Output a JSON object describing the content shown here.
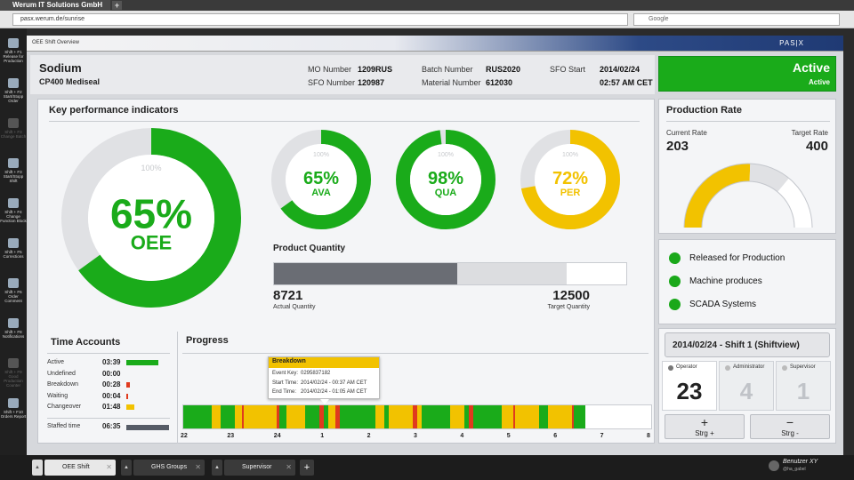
{
  "browser": {
    "tab_title": "Werum IT Solutions GmbH",
    "new_tab_label": "+",
    "url": "pasx.werum.de/sunrise",
    "search_placeholder": "Google"
  },
  "sidebar": {
    "items": [
      {
        "label": "Shift + F1 Release for Production",
        "icon": "release-icon",
        "enabled": true
      },
      {
        "label": "Shift + F2 Start/Stopp Order",
        "icon": "start-stop-icon",
        "enabled": true
      },
      {
        "label": "Shift + F3 Change Batch",
        "icon": "change-batch-icon",
        "enabled": false
      },
      {
        "label": "Shift + F3 Start/Stopp Shift",
        "icon": "shift-icon",
        "enabled": true
      },
      {
        "label": "Shift + F4 Change Function Block",
        "icon": "function-block-icon",
        "enabled": true
      },
      {
        "label": "Shift + F5 Corrections",
        "icon": "corrections-icon",
        "enabled": true
      },
      {
        "label": "Shift + F6 Order Comment",
        "icon": "comment-icon",
        "enabled": true
      },
      {
        "label": "Shift + F8 Notifications",
        "icon": "notifications-icon",
        "enabled": true
      },
      {
        "label": "Shift + F9 Good Production Counter",
        "icon": "counter-icon",
        "enabled": false
      },
      {
        "label": "Shift + F10 Orders Report",
        "icon": "report-icon",
        "enabled": true
      }
    ]
  },
  "app": {
    "window_title": "OEE Shift Overview",
    "logo": "PAS|X"
  },
  "order": {
    "product": "Sodium",
    "machine": "CP400 Mediseal",
    "mo_label": "MO Number",
    "mo_value": "1209RUS",
    "sfo_label": "SFO Number",
    "sfo_value": "120987",
    "batch_label": "Batch Number",
    "batch_value": "RUS2020",
    "material_label": "Material Number",
    "material_value": "612030",
    "sfo_start_label": "SFO Start",
    "sfo_start_date": "2014/02/24",
    "sfo_start_time": "02:57 AM CET"
  },
  "status": {
    "title": "Active",
    "subtitle": "Active",
    "color": "#1aab1a"
  },
  "kpi": {
    "title": "Key performance indicators",
    "oee": {
      "value": "65%",
      "label": "OEE",
      "max": "100%",
      "fraction": 0.65
    },
    "gauges": [
      {
        "value": "65%",
        "label": "AVA",
        "max": "100%",
        "fraction": 0.65,
        "color": "#1aab1a"
      },
      {
        "value": "98%",
        "label": "QUA",
        "max": "100%",
        "fraction": 0.98,
        "color": "#1aab1a"
      },
      {
        "value": "72%",
        "label": "PER",
        "max": "100%",
        "fraction": 0.72,
        "color": "#f2c200"
      }
    ],
    "product_quantity": {
      "title": "Product Quantity",
      "actual": "8721",
      "actual_label": "Actual Quantity",
      "target": "12500",
      "target_label": "Target Quantity",
      "actual_fraction": 0.52,
      "target_fraction": 0.83
    }
  },
  "production_rate": {
    "title": "Production Rate",
    "current_label": "Current Rate",
    "current": "203",
    "target_label": "Target Rate",
    "target": "400",
    "fraction": 0.51
  },
  "legend": [
    {
      "label": "Released for Production"
    },
    {
      "label": "Machine produces"
    },
    {
      "label": "SCADA Systems"
    }
  ],
  "time_accounts": {
    "title": "Time Accounts",
    "rows": [
      {
        "label": "Active",
        "value": "03:39",
        "color": "#1aab1a",
        "fraction": 1.0
      },
      {
        "label": "Undefined",
        "value": "00:00",
        "color": "#1aab1a",
        "fraction": 0.0
      },
      {
        "label": "Breakdown",
        "value": "00:28",
        "color": "#e03a1e",
        "fraction": 0.12
      },
      {
        "label": "Waiting",
        "value": "00:04",
        "color": "#e03a1e",
        "fraction": 0.03
      },
      {
        "label": "Changeover",
        "value": "01:48",
        "color": "#f2c200",
        "fraction": 0.25
      }
    ],
    "staffed_label": "Staffed time",
    "staffed_value": "06:35",
    "staffed_color": "#555b66"
  },
  "progress": {
    "title": "Progress",
    "tooltip": {
      "title": "Breakdown",
      "event_key_label": "Event Key:",
      "event_key": "0295837182",
      "start_label": "Start Time:",
      "start": "2014/02/24 - 00:37 AM CET",
      "end_label": "End Time:",
      "end": "2014/02/24 - 01:05 AM CET"
    },
    "hours": [
      "22",
      "23",
      "24",
      "1",
      "2",
      "3",
      "4",
      "5",
      "6",
      "7",
      "8"
    ],
    "elapsed_fraction": 0.86,
    "segments": [
      {
        "start": 0.0,
        "end": 0.06,
        "color": "#1aab1a"
      },
      {
        "start": 0.06,
        "end": 0.08,
        "color": "#f2c200"
      },
      {
        "start": 0.08,
        "end": 0.11,
        "color": "#1aab1a"
      },
      {
        "start": 0.11,
        "end": 0.125,
        "color": "#f2c200"
      },
      {
        "start": 0.125,
        "end": 0.13,
        "color": "#e03a1e"
      },
      {
        "start": 0.13,
        "end": 0.2,
        "color": "#f2c200"
      },
      {
        "start": 0.2,
        "end": 0.205,
        "color": "#e03a1e"
      },
      {
        "start": 0.205,
        "end": 0.22,
        "color": "#1aab1a"
      },
      {
        "start": 0.22,
        "end": 0.26,
        "color": "#f2c200"
      },
      {
        "start": 0.26,
        "end": 0.29,
        "color": "#1aab1a"
      },
      {
        "start": 0.29,
        "end": 0.3,
        "color": "#e03a1e"
      },
      {
        "start": 0.3,
        "end": 0.31,
        "color": "#1aab1a"
      },
      {
        "start": 0.31,
        "end": 0.325,
        "color": "#f2c200"
      },
      {
        "start": 0.325,
        "end": 0.335,
        "color": "#e03a1e"
      },
      {
        "start": 0.335,
        "end": 0.41,
        "color": "#1aab1a"
      },
      {
        "start": 0.41,
        "end": 0.43,
        "color": "#f2c200"
      },
      {
        "start": 0.43,
        "end": 0.44,
        "color": "#1aab1a"
      },
      {
        "start": 0.44,
        "end": 0.49,
        "color": "#f2c200"
      },
      {
        "start": 0.49,
        "end": 0.5,
        "color": "#e03a1e"
      },
      {
        "start": 0.5,
        "end": 0.51,
        "color": "#f2c200"
      },
      {
        "start": 0.51,
        "end": 0.57,
        "color": "#1aab1a"
      },
      {
        "start": 0.57,
        "end": 0.6,
        "color": "#f2c200"
      },
      {
        "start": 0.6,
        "end": 0.61,
        "color": "#1aab1a"
      },
      {
        "start": 0.61,
        "end": 0.62,
        "color": "#e03a1e"
      },
      {
        "start": 0.62,
        "end": 0.68,
        "color": "#1aab1a"
      },
      {
        "start": 0.68,
        "end": 0.705,
        "color": "#f2c200"
      },
      {
        "start": 0.705,
        "end": 0.71,
        "color": "#e03a1e"
      },
      {
        "start": 0.71,
        "end": 0.76,
        "color": "#f2c200"
      },
      {
        "start": 0.76,
        "end": 0.78,
        "color": "#1aab1a"
      },
      {
        "start": 0.78,
        "end": 0.83,
        "color": "#f2c200"
      },
      {
        "start": 0.83,
        "end": 0.835,
        "color": "#e03a1e"
      },
      {
        "start": 0.835,
        "end": 0.86,
        "color": "#1aab1a"
      }
    ]
  },
  "shift": {
    "title": "2014/02/24 - Shift 1 (Shiftview)",
    "roles": [
      {
        "label": "Operator",
        "count": "23",
        "active": true
      },
      {
        "label": "Administrator",
        "count": "4",
        "active": false
      },
      {
        "label": "Supervisor",
        "count": "1",
        "active": false
      }
    ],
    "add_label": "Strg +",
    "remove_label": "Strg -",
    "add_symbol": "+",
    "remove_symbol": "−"
  },
  "bottom_tabs": [
    {
      "label": "OEE Shift",
      "active": true
    },
    {
      "label": "GHS Groups",
      "active": false
    },
    {
      "label": "Supervisor",
      "active": false
    }
  ],
  "user": {
    "name": "Benutzer XY",
    "sub": "@ha_gabel"
  }
}
